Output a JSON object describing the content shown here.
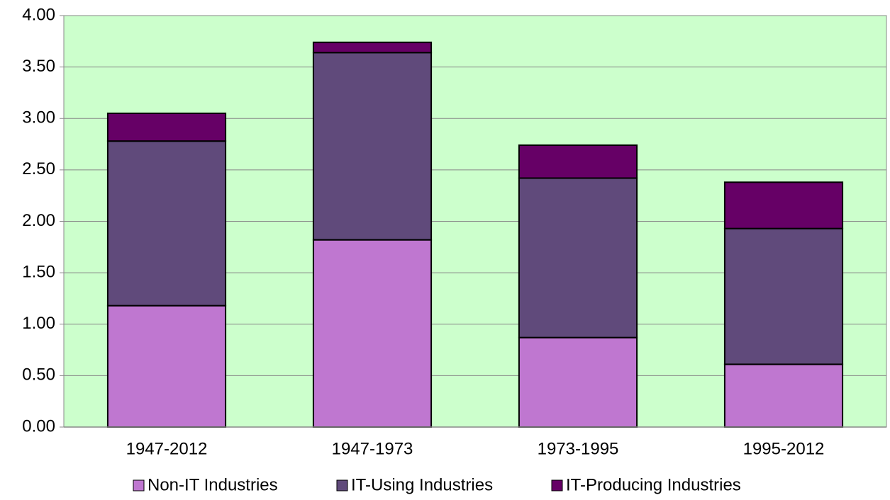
{
  "chart_data": {
    "type": "stacked_bar",
    "categories": [
      "1947-2012",
      "1947-1973",
      "1973-1995",
      "1995-2012"
    ],
    "series": [
      {
        "name": "Non-IT Industries",
        "color": "#bf77d0",
        "values": [
          1.18,
          1.82,
          0.87,
          0.61
        ]
      },
      {
        "name": "IT-Using Industries",
        "color": "#604a7b",
        "values": [
          1.6,
          1.82,
          1.55,
          1.32
        ]
      },
      {
        "name": "IT-Producing Industries",
        "color": "#660066",
        "values": [
          0.27,
          0.1,
          0.32,
          0.45
        ]
      }
    ],
    "ylim": [
      0,
      4
    ],
    "yticks": [
      {
        "value": 0,
        "label": "0.00"
      },
      {
        "value": 0.5,
        "label": "0.50"
      },
      {
        "value": 1,
        "label": "1.00"
      },
      {
        "value": 1.5,
        "label": "1.50"
      },
      {
        "value": 2,
        "label": "2.00"
      },
      {
        "value": 2.5,
        "label": "2.50"
      },
      {
        "value": 3,
        "label": "3.00"
      },
      {
        "value": 3.5,
        "label": "3.50"
      },
      {
        "value": 4,
        "label": "4.00"
      }
    ],
    "grid": true,
    "background": "#ccffcc",
    "legend": "bottom"
  }
}
